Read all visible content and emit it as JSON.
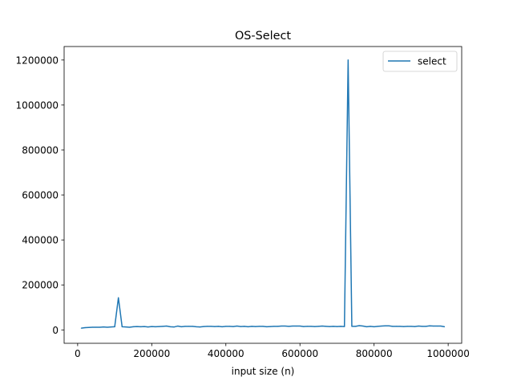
{
  "chart_data": {
    "type": "line",
    "title": "OS-Select",
    "xlabel": "input size (n)",
    "ylabel": "",
    "xlim": [
      -36500,
      1036500
    ],
    "ylim": [
      -59500,
      1260000
    ],
    "x_ticks": [
      0,
      200000,
      400000,
      600000,
      800000,
      1000000
    ],
    "y_ticks": [
      0,
      200000,
      400000,
      600000,
      800000,
      1000000,
      1200000
    ],
    "x_tick_labels": [
      "0",
      "200000",
      "400000",
      "600000",
      "800000",
      "1000000"
    ],
    "y_tick_labels": [
      "0",
      "200000",
      "400000",
      "600000",
      "800000",
      "1000000",
      "1200000"
    ],
    "grid": false,
    "legend_position": "top-right",
    "series": [
      {
        "name": "select",
        "color": "#1f77b4",
        "x": [
          10000,
          20000,
          30000,
          40000,
          50000,
          60000,
          70000,
          80000,
          90000,
          100000,
          110000,
          120000,
          130000,
          140000,
          150000,
          160000,
          170000,
          180000,
          190000,
          200000,
          210000,
          220000,
          230000,
          240000,
          250000,
          260000,
          270000,
          280000,
          290000,
          300000,
          310000,
          320000,
          330000,
          340000,
          350000,
          360000,
          370000,
          380000,
          390000,
          400000,
          410000,
          420000,
          430000,
          440000,
          450000,
          460000,
          470000,
          480000,
          490000,
          500000,
          510000,
          520000,
          530000,
          540000,
          550000,
          560000,
          570000,
          580000,
          590000,
          600000,
          610000,
          620000,
          630000,
          640000,
          650000,
          660000,
          670000,
          680000,
          690000,
          700000,
          710000,
          720000,
          730000,
          740000,
          750000,
          760000,
          770000,
          780000,
          790000,
          800000,
          810000,
          820000,
          830000,
          840000,
          850000,
          860000,
          870000,
          880000,
          890000,
          900000,
          910000,
          920000,
          930000,
          940000,
          950000,
          960000,
          970000,
          980000,
          990000
        ],
        "values": [
          8000,
          10000,
          11000,
          12000,
          12000,
          12000,
          13000,
          12000,
          13000,
          14000,
          143000,
          14000,
          13000,
          12000,
          14000,
          15000,
          14000,
          15000,
          13000,
          15000,
          14000,
          15000,
          16000,
          17000,
          14000,
          13000,
          17000,
          14000,
          16000,
          16000,
          16000,
          14000,
          13000,
          15000,
          16000,
          16000,
          15000,
          16000,
          14000,
          16000,
          16000,
          15000,
          17000,
          15000,
          16000,
          14000,
          16000,
          15000,
          16000,
          16000,
          14000,
          15000,
          16000,
          16000,
          17000,
          17000,
          16000,
          17000,
          17000,
          17000,
          15000,
          16000,
          16000,
          15000,
          16000,
          17000,
          16000,
          15000,
          16000,
          15000,
          16000,
          15000,
          1200000,
          16000,
          16000,
          19000,
          17000,
          14000,
          16000,
          14000,
          16000,
          17000,
          18000,
          18000,
          16000,
          16000,
          16000,
          15000,
          16000,
          16000,
          15000,
          17000,
          16000,
          16000,
          18000,
          17000,
          17000,
          17000,
          14000
        ]
      }
    ]
  }
}
